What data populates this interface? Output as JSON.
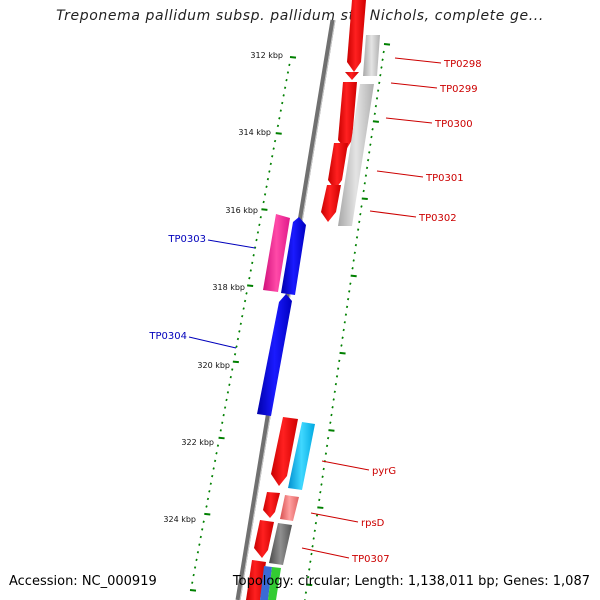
{
  "title": "Treponema pallidum subsp. pallidum str. Nichols, complete ge...",
  "footer": {
    "accession": "Accession: NC_000919",
    "summary": "Topology: circular; Length: 1,138,011 bp; Genes: 1,087"
  },
  "scale_labels": [
    "312 kbp",
    "314 kbp",
    "316 kbp",
    "318 kbp",
    "320 kbp",
    "322 kbp",
    "324 kbp"
  ],
  "gene_labels": [
    {
      "text": "TP0298",
      "color": "#cc0000"
    },
    {
      "text": "TP0299",
      "color": "#cc0000"
    },
    {
      "text": "TP0300",
      "color": "#cc0000"
    },
    {
      "text": "TP0301",
      "color": "#cc0000"
    },
    {
      "text": "TP0302",
      "color": "#cc0000"
    },
    {
      "text": "TP0303",
      "color": "#0000bb"
    },
    {
      "text": "TP0304",
      "color": "#0000bb"
    },
    {
      "text": "pyrG",
      "color": "#cc0000"
    },
    {
      "text": "rpsD",
      "color": "#cc0000"
    },
    {
      "text": "TP0307",
      "color": "#cc0000"
    }
  ],
  "colors": {
    "backbone": "#808080",
    "ticks": "#008000",
    "red_gene": "#ff0000",
    "grey_gene": "#c0c0c0",
    "blue_gene": "#0000ee",
    "magenta_gene": "#ff1493",
    "cyan_gene": "#00bfff",
    "pink_gene": "#ee7777",
    "dark_grey_gene": "#666666"
  }
}
